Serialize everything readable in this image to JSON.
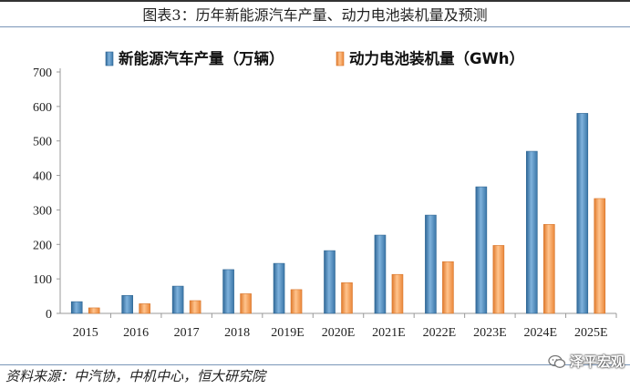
{
  "title": "图表3：历年新能源汽车产量、动力电池装机量及预测",
  "source": "资料来源：中汽协，中机中心，恒大研究院",
  "watermark": "泽平宏观",
  "colors": {
    "series1": "#4a86b8",
    "series2": "#f59a50"
  },
  "chart_data": {
    "type": "bar",
    "categories": [
      "2015",
      "2016",
      "2017",
      "2018",
      "2019E",
      "2020E",
      "2021E",
      "2022E",
      "2023E",
      "2024E",
      "2025E"
    ],
    "series": [
      {
        "name": "新能源汽车产量（万辆）",
        "values": [
          34,
          52,
          79,
          127,
          145,
          182,
          227,
          285,
          367,
          470,
          580
        ]
      },
      {
        "name": "动力电池装机量（GWh）",
        "values": [
          16,
          28,
          37,
          57,
          69,
          89,
          113,
          150,
          197,
          258,
          333
        ]
      }
    ],
    "ylim": [
      0,
      700
    ],
    "yticks": [
      0,
      100,
      200,
      300,
      400,
      500,
      600,
      700
    ],
    "legend_position": "top-center",
    "grid": false
  }
}
